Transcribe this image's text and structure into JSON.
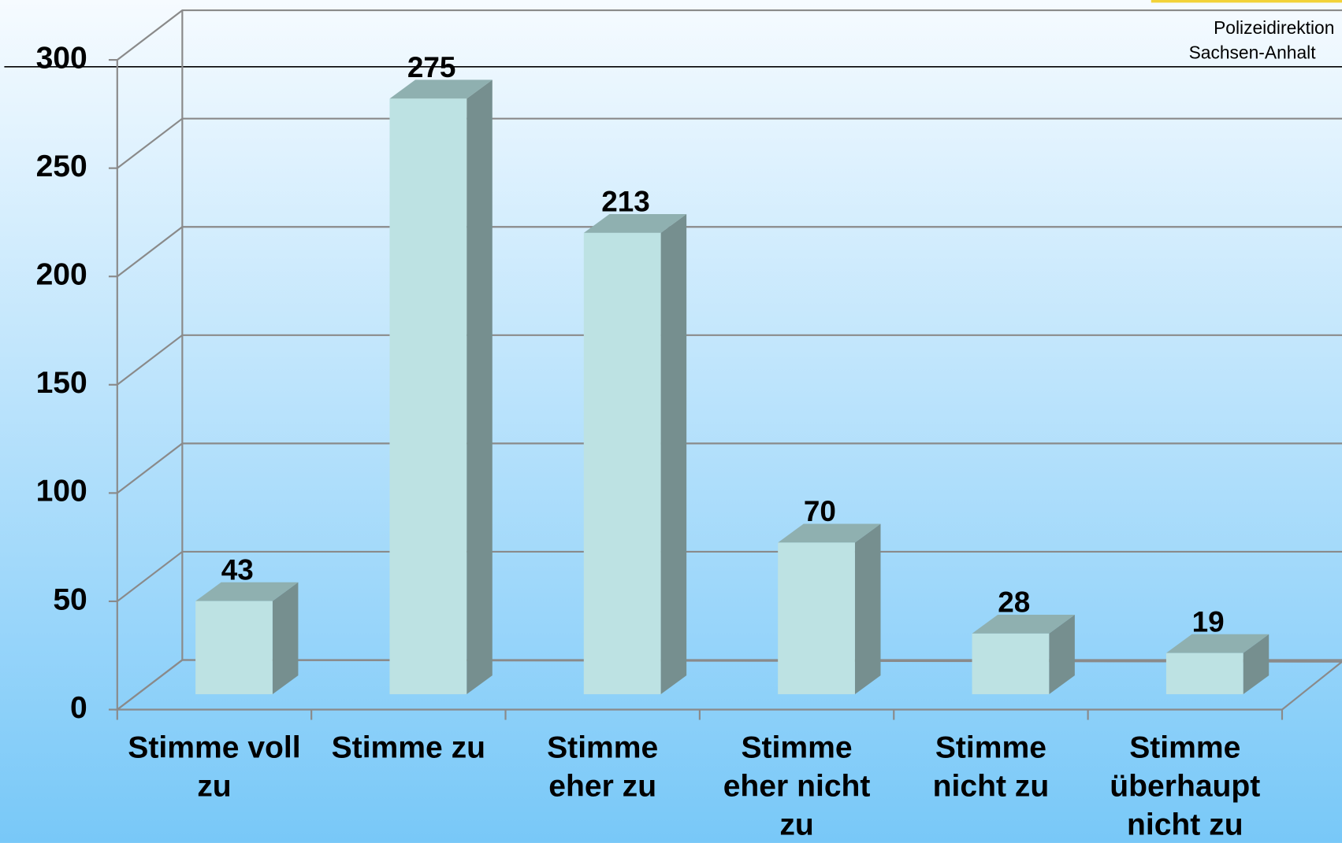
{
  "header": {
    "lines": [
      "Polizeidirektion",
      "Sachsen-Anhalt"
    ]
  },
  "chart_data": {
    "type": "bar3d",
    "categories": [
      "Stimme voll zu",
      "Stimme zu",
      "Stimme eher zu",
      "Stimme eher nicht zu",
      "Stimme nicht zu",
      "Stimme überhaupt nicht zu"
    ],
    "values": [
      43,
      275,
      213,
      70,
      28,
      19
    ],
    "color": "#bde2e3",
    "ylim": [
      0,
      300
    ],
    "yticks": [
      0,
      50,
      100,
      150,
      200,
      250,
      300
    ],
    "grid": true
  }
}
